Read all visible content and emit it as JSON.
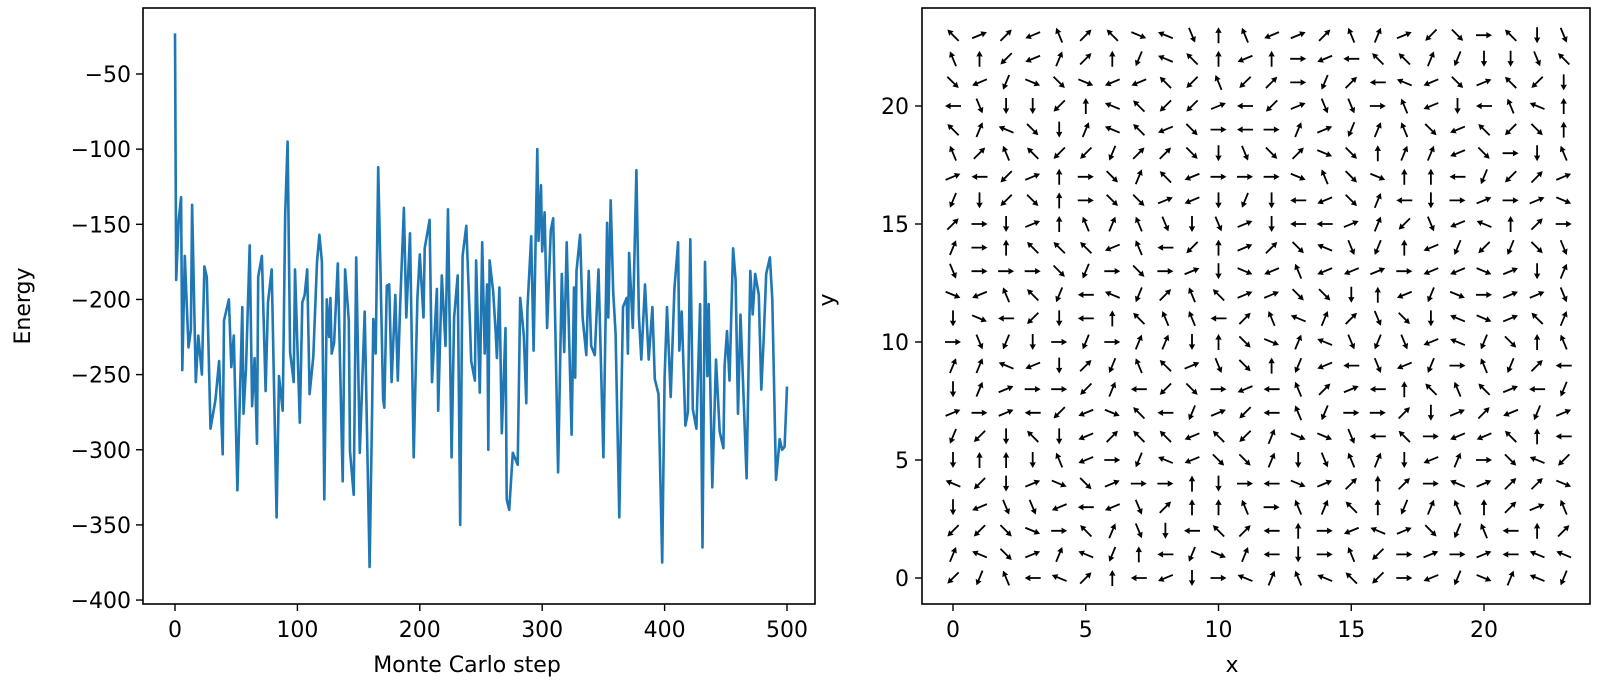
{
  "chart_data": [
    {
      "type": "line",
      "title": "",
      "xlabel": "Monte Carlo step",
      "ylabel": "Energy",
      "xlim": [
        -27,
        522
      ],
      "ylim": [
        -405,
        -10
      ],
      "xticks": [
        0,
        100,
        200,
        300,
        400,
        500
      ],
      "yticks": [
        -50,
        -100,
        -150,
        -200,
        -250,
        -300,
        -350,
        -400
      ],
      "grid": false,
      "series": [
        {
          "name": "Energy",
          "color": "#1f77b4",
          "points": [
            [
              0,
              -23
            ],
            [
              1,
              -187
            ],
            [
              3,
              -147
            ],
            [
              5,
              -132
            ],
            [
              6,
              -247
            ],
            [
              8,
              -171
            ],
            [
              11,
              -232
            ],
            [
              13,
              -220
            ],
            [
              14,
              -137
            ],
            [
              17,
              -255
            ],
            [
              19,
              -224
            ],
            [
              22,
              -250
            ],
            [
              24,
              -178
            ],
            [
              26,
              -185
            ],
            [
              29,
              -286
            ],
            [
              33,
              -267
            ],
            [
              36,
              -241
            ],
            [
              39,
              -303
            ],
            [
              40,
              -214
            ],
            [
              44,
              -200
            ],
            [
              46,
              -245
            ],
            [
              48,
              -224
            ],
            [
              51,
              -327
            ],
            [
              55,
              -205
            ],
            [
              56,
              -276
            ],
            [
              58,
              -246
            ],
            [
              61,
              -164
            ],
            [
              63,
              -271
            ],
            [
              65,
              -239
            ],
            [
              67,
              -296
            ],
            [
              68,
              -185
            ],
            [
              71,
              -171
            ],
            [
              74,
              -261
            ],
            [
              76,
              -202
            ],
            [
              79,
              -180
            ],
            [
              83,
              -345
            ],
            [
              85,
              -251
            ],
            [
              88,
              -274
            ],
            [
              90,
              -143
            ],
            [
              92,
              -95
            ],
            [
              94,
              -235
            ],
            [
              97,
              -255
            ],
            [
              98,
              -180
            ],
            [
              102,
              -282
            ],
            [
              104,
              -202
            ],
            [
              106,
              -197
            ],
            [
              108,
              -180
            ],
            [
              110,
              -263
            ],
            [
              113,
              -238
            ],
            [
              116,
              -175
            ],
            [
              118,
              -157
            ],
            [
              120,
              -175
            ],
            [
              122,
              -333
            ],
            [
              124,
              -200
            ],
            [
              126,
              -225
            ],
            [
              127,
              -199
            ],
            [
              128,
              -236
            ],
            [
              130,
              -229
            ],
            [
              133,
              -176
            ],
            [
              137,
              -321
            ],
            [
              139,
              -180
            ],
            [
              142,
              -214
            ],
            [
              143,
              -301
            ],
            [
              146,
              -330
            ],
            [
              148,
              -172
            ],
            [
              151,
              -302
            ],
            [
              155,
              -208
            ],
            [
              159,
              -378
            ],
            [
              161,
              -274
            ],
            [
              162,
              -213
            ],
            [
              164,
              -236
            ],
            [
              166,
              -112
            ],
            [
              168,
              -185
            ],
            [
              170,
              -266
            ],
            [
              171,
              -272
            ],
            [
              173,
              -191
            ],
            [
              175,
              -190
            ],
            [
              177,
              -255
            ],
            [
              180,
              -197
            ],
            [
              182,
              -254
            ],
            [
              184,
              -203
            ],
            [
              187,
              -139
            ],
            [
              189,
              -212
            ],
            [
              192,
              -156
            ],
            [
              195,
              -305
            ],
            [
              198,
              -199
            ],
            [
              200,
              -170
            ],
            [
              203,
              -212
            ],
            [
              204,
              -166
            ],
            [
              208,
              -147
            ],
            [
              210,
              -255
            ],
            [
              214,
              -193
            ],
            [
              215,
              -274
            ],
            [
              218,
              -184
            ],
            [
              221,
              -231
            ],
            [
              223,
              -140
            ],
            [
              226,
              -305
            ],
            [
              228,
              -212
            ],
            [
              231,
              -184
            ],
            [
              233,
              -350
            ],
            [
              235,
              -171
            ],
            [
              238,
              -151
            ],
            [
              241,
              -217
            ],
            [
              242,
              -241
            ],
            [
              245,
              -254
            ],
            [
              246,
              -174
            ],
            [
              249,
              -262
            ],
            [
              251,
              -162
            ],
            [
              253,
              -236
            ],
            [
              255,
              -190
            ],
            [
              256,
              -300
            ],
            [
              257,
              -174
            ],
            [
              260,
              -195
            ],
            [
              262,
              -222
            ],
            [
              263,
              -239
            ],
            [
              265,
              -192
            ],
            [
              267,
              -289
            ],
            [
              270,
              -219
            ],
            [
              271,
              -333
            ],
            [
              273,
              -340
            ],
            [
              276,
              -302
            ],
            [
              280,
              -310
            ],
            [
              282,
              -199
            ],
            [
              285,
              -224
            ],
            [
              287,
              -269
            ],
            [
              288,
              -205
            ],
            [
              291,
              -158
            ],
            [
              293,
              -234
            ],
            [
              296,
              -100
            ],
            [
              297,
              -161
            ],
            [
              299,
              -124
            ],
            [
              300,
              -168
            ],
            [
              302,
              -142
            ],
            [
              304,
              -219
            ],
            [
              307,
              -154
            ],
            [
              309,
              -146
            ],
            [
              311,
              -232
            ],
            [
              313,
              -315
            ],
            [
              316,
              -183
            ],
            [
              318,
              -235
            ],
            [
              320,
              -162
            ],
            [
              324,
              -290
            ],
            [
              326,
              -192
            ],
            [
              327,
              -252
            ],
            [
              328,
              -181
            ],
            [
              331,
              -157
            ],
            [
              333,
              -212
            ],
            [
              336,
              -237
            ],
            [
              338,
              -181
            ],
            [
              340,
              -231
            ],
            [
              343,
              -237
            ],
            [
              346,
              -180
            ],
            [
              350,
              -305
            ],
            [
              353,
              -149
            ],
            [
              354,
              -212
            ],
            [
              356,
              -134
            ],
            [
              358,
              -195
            ],
            [
              360,
              -223
            ],
            [
              363,
              -345
            ],
            [
              366,
              -205
            ],
            [
              369,
              -199
            ],
            [
              370,
              -236
            ],
            [
              371,
              -169
            ],
            [
              374,
              -219
            ],
            [
              377,
              -114
            ],
            [
              379,
              -211
            ],
            [
              381,
              -240
            ],
            [
              384,
              -190
            ],
            [
              387,
              -240
            ],
            [
              390,
              -205
            ],
            [
              392,
              -253
            ],
            [
              395,
              -263
            ],
            [
              398,
              -375
            ],
            [
              400,
              -252
            ],
            [
              402,
              -205
            ],
            [
              405,
              -265
            ],
            [
              408,
              -193
            ],
            [
              411,
              -162
            ],
            [
              412,
              -234
            ],
            [
              414,
              -208
            ],
            [
              417,
              -284
            ],
            [
              419,
              -275
            ],
            [
              421,
              -160
            ],
            [
              423,
              -273
            ],
            [
              426,
              -286
            ],
            [
              429,
              -203
            ],
            [
              431,
              -365
            ],
            [
              433,
              -175
            ],
            [
              435,
              -251
            ],
            [
              436,
              -203
            ],
            [
              439,
              -325
            ],
            [
              442,
              -240
            ],
            [
              445,
              -288
            ],
            [
              448,
              -299
            ],
            [
              449,
              -244
            ],
            [
              451,
              -221
            ],
            [
              453,
              -254
            ],
            [
              456,
              -166
            ],
            [
              458,
              -187
            ],
            [
              460,
              -276
            ],
            [
              462,
              -210
            ],
            [
              467,
              -319
            ],
            [
              470,
              -181
            ],
            [
              472,
              -210
            ],
            [
              474,
              -183
            ],
            [
              477,
              -197
            ],
            [
              479,
              -260
            ],
            [
              481,
              -226
            ],
            [
              483,
              -183
            ],
            [
              486,
              -172
            ],
            [
              488,
              -200
            ],
            [
              491,
              -320
            ],
            [
              494,
              -293
            ],
            [
              496,
              -300
            ],
            [
              498,
              -298
            ],
            [
              500,
              -258
            ]
          ]
        }
      ]
    },
    {
      "type": "quiver",
      "title": "",
      "xlabel": "x",
      "ylabel": "y",
      "xlim": [
        -1.15,
        24.15
      ],
      "ylim": [
        -1.1,
        24.2
      ],
      "xticks": [
        0,
        5,
        10,
        15,
        20
      ],
      "yticks": [
        0,
        5,
        10,
        15,
        20
      ],
      "grid": false,
      "color": "#000000",
      "grid_size": [
        24,
        24
      ],
      "angle_unit_deg": 22.5,
      "angle_encoding": "hex digit per arrow, angle = digit*22.5 deg counter-clockwise from +x; rows listed from y=23 down to y=0, columns x=0..23",
      "rows": [
        "6129526f7d45912531ae06cd",
        "54a9324b76494098663bccd6",
        "e9bfef996a5a20b2879e16ac",
        "8dcca476aa18a1dd059c8574",
        "637ec3769e08031b35e96ae4",
        "5256aab22ecde2fe4339e0c5",
        "18a140e369000f5ef448ba21",
        "bcae40ee19cbc89e38c0101f",
        "20c14535dcd1c8813ad97420",
        "304666958a412e7db49babed",
        "d000eb0e01cf95991099f1c3",
        "f956b87b25611eec49bf011d",
        "cf8ac84655825732dec7f163",
        "0dbc0b033c4ef37dbd97be45",
        "3379c2b561de4b98d9b05b28",
        "c3100a38ae0985218465618b",
        "1018a9f68b1a85b002c129b1",
        "bac6c926696a3ffd86099648",
        "c44c590b79ee3cd53c930e7a",
        "7ac1fe1004c08f124207122f",
        "c9dd989d244505364b354215",
        "aaef063dc862840971eb5842",
        "37e137b48bf38c05a0101877",
        "ab5872489c073576a09bf37b"
      ]
    }
  ]
}
